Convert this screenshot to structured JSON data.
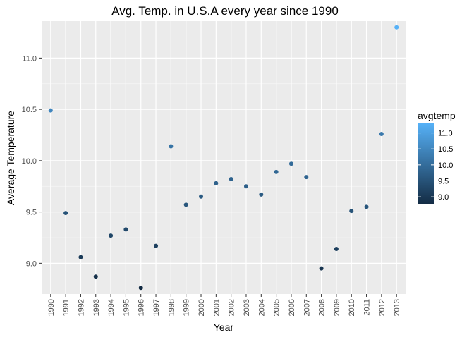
{
  "chart_data": {
    "type": "scatter",
    "title": "Avg. Temp. in U.S.A every year since 1990",
    "xlabel": "Year",
    "ylabel": "Average Temperature",
    "x": [
      1990,
      1991,
      1992,
      1993,
      1994,
      1995,
      1996,
      1997,
      1998,
      1999,
      2000,
      2001,
      2002,
      2003,
      2004,
      2005,
      2006,
      2007,
      2008,
      2009,
      2010,
      2011,
      2012,
      2013
    ],
    "y": [
      10.49,
      9.49,
      9.06,
      8.87,
      9.27,
      9.33,
      8.76,
      9.17,
      10.14,
      9.57,
      9.65,
      9.78,
      9.82,
      9.75,
      9.67,
      9.89,
      9.97,
      9.84,
      8.95,
      9.14,
      9.51,
      9.55,
      10.26,
      11.3
    ],
    "x_ticks": [
      "1990",
      "1991",
      "1992",
      "1993",
      "1994",
      "1995",
      "1996",
      "1997",
      "1998",
      "1999",
      "2000",
      "2001",
      "2002",
      "2003",
      "2004",
      "2005",
      "2006",
      "2007",
      "2008",
      "2009",
      "2010",
      "2011",
      "2012",
      "2013"
    ],
    "y_ticks": [
      "9.0",
      "9.5",
      "10.0",
      "10.5",
      "11.0"
    ],
    "ylim": [
      8.7,
      11.36
    ],
    "grid": true,
    "legend": {
      "title": "avgtemp",
      "position": "right",
      "type": "colorbar",
      "labels": [
        "11.0",
        "10.5",
        "10.0",
        "9.5",
        "9.0"
      ],
      "low_color": "#132b43",
      "high_color": "#56b1f7"
    },
    "colors": {
      "panel_bg": "#ebebeb",
      "grid_major": "#ffffff",
      "low": "#132b43",
      "high": "#56b1f7"
    }
  }
}
